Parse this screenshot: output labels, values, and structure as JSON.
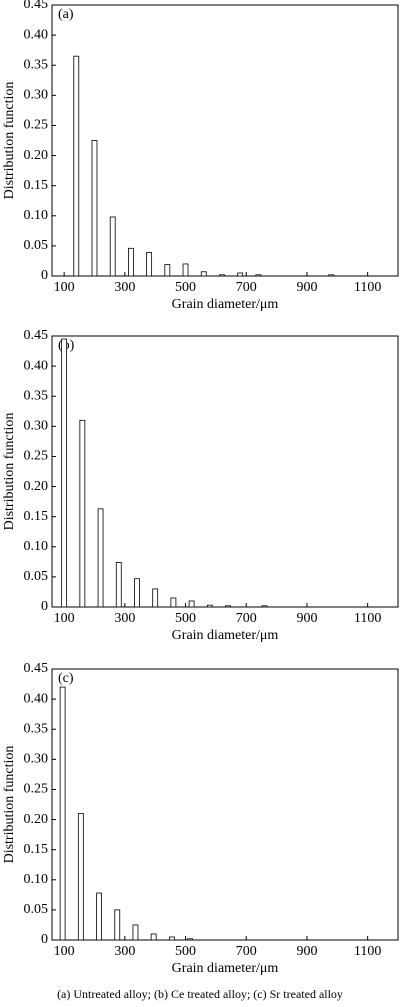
{
  "chart_data": [
    {
      "type": "bar",
      "panel_label": "(a)",
      "x_label": "Grain diameter/μm",
      "y_label": "Distribution function",
      "x": [
        140,
        200,
        260,
        320,
        380,
        440,
        500,
        560,
        620,
        680,
        740,
        980
      ],
      "values": [
        0.365,
        0.225,
        0.098,
        0.046,
        0.039,
        0.019,
        0.02,
        0.007,
        0.002,
        0.005,
        0.002,
        0.002
      ],
      "color": "#ffffff",
      "xlim": [
        60,
        1200
      ],
      "ylim": [
        0,
        0.45
      ],
      "xticks": [
        100,
        300,
        500,
        700,
        900,
        1100
      ],
      "yticks": [
        0,
        0.05,
        {
          "value": 0.1,
          "label": "0.10"
        },
        0.15,
        {
          "value": 0.2,
          "label": "0.20"
        },
        0.25,
        {
          "value": 0.3,
          "label": "0.30"
        },
        0.35,
        {
          "value": 0.4,
          "label": "0.40"
        },
        0.45
      ]
    },
    {
      "type": "bar",
      "panel_label": "(b)",
      "x_label": "Grain diameter/μm",
      "y_label": "Distribution function",
      "x": [
        100,
        160,
        220,
        280,
        340,
        400,
        460,
        520,
        580,
        640,
        760
      ],
      "values": [
        0.445,
        0.31,
        0.163,
        0.074,
        0.047,
        0.03,
        0.015,
        0.01,
        0.003,
        0.002,
        0.002
      ],
      "color": "#ffffff",
      "xlim": [
        60,
        1200
      ],
      "ylim": [
        0,
        0.45
      ],
      "xticks": [
        100,
        300,
        500,
        700,
        900,
        1100
      ],
      "yticks": [
        0,
        0.05,
        {
          "value": 0.1,
          "label": "0.10"
        },
        0.15,
        {
          "value": 0.2,
          "label": "0.20"
        },
        0.25,
        {
          "value": 0.3,
          "label": "0.30"
        },
        0.35,
        {
          "value": 0.4,
          "label": "0.40"
        },
        0.45
      ]
    },
    {
      "type": "bar",
      "panel_label": "(c)",
      "x_label": "Grain diameter/μm",
      "y_label": "Distribution function",
      "x": [
        95,
        155,
        215,
        275,
        335,
        395,
        455,
        515
      ],
      "values": [
        0.42,
        0.21,
        0.078,
        0.05,
        0.025,
        0.01,
        0.005,
        0.002
      ],
      "color": "#ffffff",
      "xlim": [
        60,
        1200
      ],
      "ylim": [
        0,
        0.45
      ],
      "xticks": [
        100,
        300,
        500,
        700,
        900,
        1100
      ],
      "yticks": [
        0,
        0.05,
        {
          "value": 0.1,
          "label": "0.10"
        },
        0.15,
        {
          "value": 0.2,
          "label": "0.20"
        },
        0.25,
        {
          "value": 0.3,
          "label": "0.30"
        },
        0.35,
        {
          "value": 0.4,
          "label": "0.40"
        },
        0.45
      ]
    }
  ],
  "caption": "(a) Untreated alloy; (b) Ce  treated alloy; (c) Sr treated alloy"
}
